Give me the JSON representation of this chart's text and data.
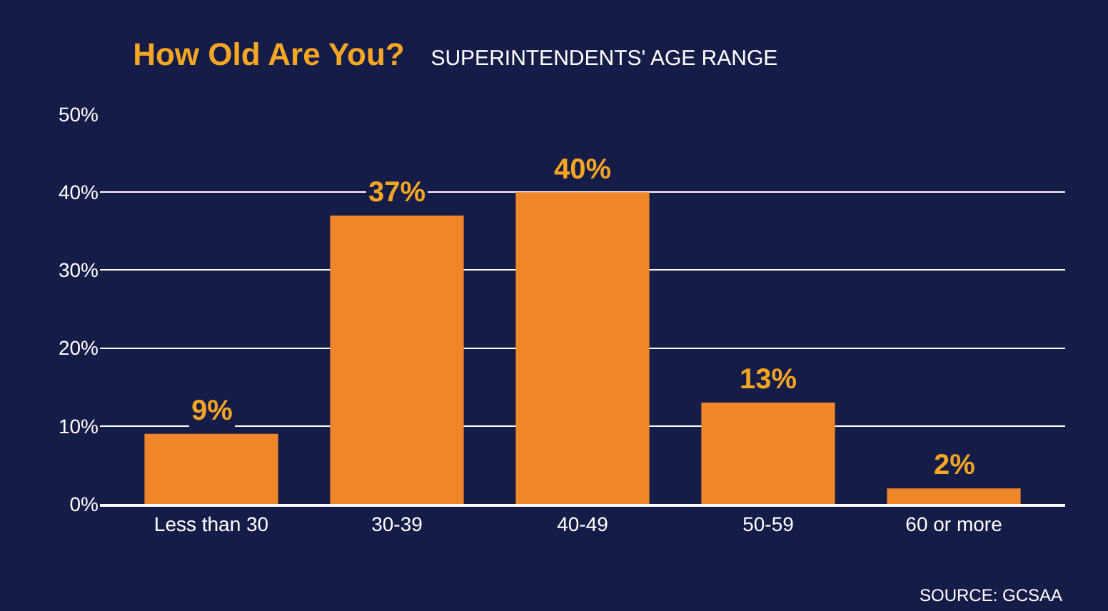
{
  "chart_data": {
    "type": "bar",
    "title": "How Old Are You?",
    "subtitle": "SUPERINTENDENTS' AGE RANGE",
    "categories": [
      "Less than 30",
      "30-39",
      "40-49",
      "50-59",
      "60 or more"
    ],
    "values": [
      9,
      37,
      40,
      13,
      2
    ],
    "color": "#f0862a",
    "value_labels": [
      "9%",
      "37%",
      "40%",
      "13%",
      "2%"
    ],
    "ylim": [
      0,
      50
    ],
    "yticks": [
      {
        "value": 0,
        "label": "0%"
      },
      {
        "value": 10,
        "label": "10%"
      },
      {
        "value": 20,
        "label": "20%"
      },
      {
        "value": 30,
        "label": "30%"
      },
      {
        "value": 40,
        "label": "40%"
      },
      {
        "value": 50,
        "label": "50%"
      }
    ],
    "grid": "y",
    "legend": false,
    "annotations": [
      "SOURCE: GCSAA"
    ]
  }
}
